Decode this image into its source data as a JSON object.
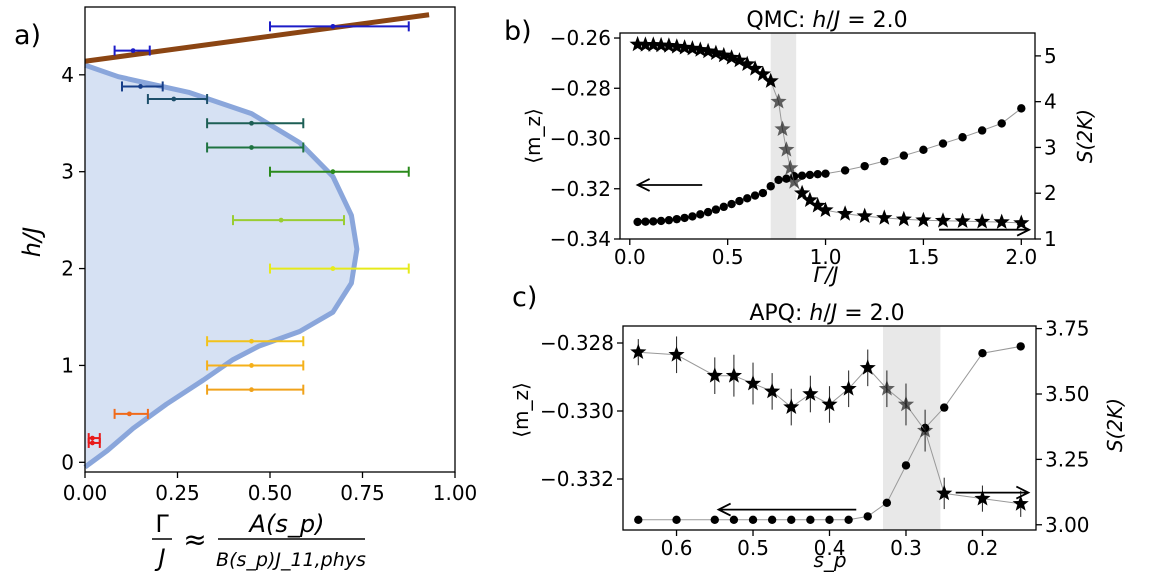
{
  "panel_labels": {
    "a": "a)",
    "b": "b)",
    "c": "c)"
  },
  "colors": {
    "region_fill": "#d6e1f3",
    "region_edge": "#8aa6db",
    "upper_line": "#8b4513",
    "shade": "#e8e8e8",
    "marker": "#000000",
    "guide_line": "#999999"
  },
  "chart_data": [
    {
      "id": "a",
      "type": "line",
      "title": "",
      "xlabel": "Γ/J ≈ A(s_p) / (B(s_p) J_11,phys)",
      "xlabel_parts": {
        "lhs_num": "Γ",
        "lhs_den": "J",
        "approx": "≈",
        "rhs_num": "A(s_p)",
        "rhs_den": "B(s_p)J_11,phys"
      },
      "ylabel": "h/J",
      "xlim": [
        0,
        1.0
      ],
      "ylim": [
        -0.1,
        4.7
      ],
      "xticks": [
        0.0,
        0.25,
        0.5,
        0.75,
        1.0
      ],
      "xtick_labels": [
        "0.00",
        "0.25",
        "0.50",
        "0.75",
        "1.00"
      ],
      "yticks": [
        0,
        1,
        2,
        3,
        4
      ],
      "ytick_labels": [
        "0",
        "1",
        "2",
        "3",
        "4"
      ],
      "phase_boundary": {
        "x": [
          0.0,
          0.09,
          0.28,
          0.45,
          0.58,
          0.67,
          0.72,
          0.735,
          0.72,
          0.67,
          0.58,
          0.47,
          0.4,
          0.32,
          0.22,
          0.13,
          0.06,
          0.01,
          0.0
        ],
        "y": [
          4.1,
          3.98,
          3.82,
          3.6,
          3.3,
          2.95,
          2.55,
          2.2,
          1.85,
          1.55,
          1.35,
          1.2,
          1.06,
          0.85,
          0.6,
          0.35,
          0.12,
          -0.02,
          -0.05
        ]
      },
      "upper_line": {
        "x": [
          0.0,
          0.93
        ],
        "y": [
          4.14,
          4.62
        ]
      },
      "points": [
        {
          "x": 0.13,
          "y": 4.25,
          "xerr": [
            0.08,
            0.175
          ],
          "color": "#1c1cc8"
        },
        {
          "x": 0.67,
          "y": 4.5,
          "xerr": [
            0.5,
            0.875
          ],
          "color": "#1c1cc8"
        },
        {
          "x": 0.15,
          "y": 3.88,
          "xerr": [
            0.1,
            0.21
          ],
          "color": "#173f8a"
        },
        {
          "x": 0.24,
          "y": 3.75,
          "xerr": [
            0.17,
            0.33
          ],
          "color": "#1d4f6a"
        },
        {
          "x": 0.45,
          "y": 3.5,
          "xerr": [
            0.33,
            0.59
          ],
          "color": "#1d5f55"
        },
        {
          "x": 0.45,
          "y": 3.25,
          "xerr": [
            0.33,
            0.59
          ],
          "color": "#1e7340"
        },
        {
          "x": 0.67,
          "y": 3.0,
          "xerr": [
            0.5,
            0.875
          ],
          "color": "#2a8a1c"
        },
        {
          "x": 0.53,
          "y": 2.5,
          "xerr": [
            0.4,
            0.7
          ],
          "color": "#9acd32"
        },
        {
          "x": 0.67,
          "y": 2.0,
          "xerr": [
            0.5,
            0.875
          ],
          "color": "#e6ea1a"
        },
        {
          "x": 0.45,
          "y": 1.25,
          "xerr": [
            0.33,
            0.59
          ],
          "color": "#f2c21a"
        },
        {
          "x": 0.45,
          "y": 1.0,
          "xerr": [
            0.33,
            0.59
          ],
          "color": "#f5b01a"
        },
        {
          "x": 0.45,
          "y": 0.75,
          "xerr": [
            0.33,
            0.59
          ],
          "color": "#f0a21a"
        },
        {
          "x": 0.12,
          "y": 0.5,
          "xerr": [
            0.08,
            0.17
          ],
          "color": "#f06a1a"
        },
        {
          "x": 0.02,
          "y": 0.25,
          "xerr": [
            0.01,
            0.04
          ],
          "color": "#e81a1a"
        },
        {
          "x": 0.02,
          "y": 0.2,
          "xerr": [
            0.01,
            0.04
          ],
          "color": "#e81a1a"
        }
      ]
    },
    {
      "id": "b",
      "type": "line",
      "title": "QMC: h/J = 2.0",
      "title_parts": {
        "prefix": "QMC: ",
        "h": "h",
        "slash": "/",
        "J": "J",
        "eq": " = 2.0"
      },
      "xlabel": "Γ/J",
      "ylabel": "⟨m_z⟩",
      "ylabel_right": "S(2K)",
      "xlim": [
        -0.05,
        2.07
      ],
      "ylim": [
        -0.34,
        -0.258
      ],
      "ylim_right": [
        1.0,
        5.5
      ],
      "xticks": [
        0.0,
        0.5,
        1.0,
        1.5,
        2.0
      ],
      "xtick_labels": [
        "0.0",
        "0.5",
        "1.0",
        "1.5",
        "2.0"
      ],
      "yticks": [
        -0.34,
        -0.32,
        -0.3,
        -0.28,
        -0.26
      ],
      "ytick_labels": [
        "−0.34",
        "−0.32",
        "−0.30",
        "−0.28",
        "−0.26"
      ],
      "yticks_right": [
        1,
        2,
        3,
        4,
        5
      ],
      "ytick_labels_right": [
        "1",
        "2",
        "3",
        "4",
        "5"
      ],
      "shaded_x": [
        0.72,
        0.85
      ],
      "arrow_left": {
        "from": [
          0.37,
          -0.3185
        ],
        "to": [
          0.04,
          -0.3185
        ]
      },
      "arrow_right": {
        "from": [
          1.58,
          -0.3363
        ],
        "to": [
          2.04,
          -0.3363
        ]
      },
      "series": [
        {
          "name": "⟨m_z⟩",
          "axis": "left",
          "marker": "circle",
          "x": [
            0.04,
            0.08,
            0.12,
            0.16,
            0.2,
            0.24,
            0.28,
            0.32,
            0.36,
            0.4,
            0.44,
            0.48,
            0.52,
            0.56,
            0.6,
            0.64,
            0.68,
            0.72,
            0.76,
            0.8,
            0.84,
            0.88,
            0.92,
            0.96,
            1.0,
            1.1,
            1.2,
            1.3,
            1.4,
            1.5,
            1.6,
            1.7,
            1.8,
            1.9,
            2.0
          ],
          "values": [
            -0.3332,
            -0.3331,
            -0.333,
            -0.3328,
            -0.3325,
            -0.3321,
            -0.3316,
            -0.331,
            -0.3302,
            -0.3293,
            -0.3283,
            -0.3272,
            -0.3261,
            -0.3249,
            -0.3238,
            -0.3227,
            -0.3217,
            -0.319,
            -0.3165,
            -0.316,
            -0.315,
            -0.3148,
            -0.3145,
            -0.3142,
            -0.314,
            -0.3127,
            -0.311,
            -0.309,
            -0.3068,
            -0.3045,
            -0.302,
            -0.2995,
            -0.2968,
            -0.294,
            -0.288
          ]
        },
        {
          "name": "S(2K)",
          "axis": "right",
          "marker": "star",
          "x": [
            0.04,
            0.08,
            0.12,
            0.16,
            0.2,
            0.24,
            0.28,
            0.32,
            0.36,
            0.4,
            0.44,
            0.48,
            0.52,
            0.56,
            0.6,
            0.64,
            0.68,
            0.72,
            0.76,
            0.78,
            0.8,
            0.82,
            0.84,
            0.88,
            0.92,
            0.96,
            1.0,
            1.1,
            1.2,
            1.3,
            1.4,
            1.5,
            1.6,
            1.7,
            1.8,
            1.9,
            2.0
          ],
          "values": [
            5.25,
            5.24,
            5.24,
            5.23,
            5.22,
            5.2,
            5.18,
            5.16,
            5.13,
            5.1,
            5.06,
            5.01,
            4.96,
            4.9,
            4.82,
            4.72,
            4.6,
            4.45,
            4.0,
            3.4,
            2.95,
            2.55,
            2.25,
            2.0,
            1.85,
            1.73,
            1.63,
            1.55,
            1.5,
            1.46,
            1.43,
            1.41,
            1.4,
            1.39,
            1.38,
            1.37,
            1.35
          ]
        }
      ]
    },
    {
      "id": "c",
      "type": "line",
      "title": "APQ: h/J = 2.0",
      "title_parts": {
        "prefix": "APQ: ",
        "h": "h",
        "slash": "/",
        "J": "J",
        "eq": " = 2.0"
      },
      "xlabel": "s_p",
      "ylabel": "⟨m_z⟩",
      "ylabel_right": "S(2K)",
      "xlim": [
        0.67,
        0.13
      ],
      "ylim": [
        -0.3335,
        -0.3275
      ],
      "ylim_right": [
        2.98,
        3.76
      ],
      "xticks": [
        0.6,
        0.5,
        0.4,
        0.3,
        0.2
      ],
      "xtick_labels": [
        "0.6",
        "0.5",
        "0.4",
        "0.3",
        "0.2"
      ],
      "yticks": [
        -0.332,
        -0.33,
        -0.328
      ],
      "ytick_labels": [
        "−0.332",
        "−0.330",
        "−0.328"
      ],
      "yticks_right": [
        3.0,
        3.25,
        3.5,
        3.75
      ],
      "ytick_labels_right": [
        "3.00",
        "3.25",
        "3.50",
        "3.75"
      ],
      "shaded_x": [
        0.33,
        0.255
      ],
      "arrow_left": {
        "from": [
          0.365,
          -0.3329
        ],
        "to": [
          0.545,
          -0.3329
        ]
      },
      "arrow_right": {
        "from": [
          0.235,
          -0.3324
        ],
        "to": [
          0.14,
          -0.3324
        ]
      },
      "series": [
        {
          "name": "⟨m_z⟩",
          "axis": "left",
          "marker": "circle",
          "x": [
            0.65,
            0.6,
            0.55,
            0.525,
            0.5,
            0.475,
            0.45,
            0.425,
            0.4,
            0.375,
            0.35,
            0.325,
            0.3,
            0.275,
            0.25,
            0.2,
            0.15
          ],
          "values": [
            -0.3332,
            -0.3332,
            -0.3332,
            -0.3332,
            -0.3332,
            -0.3332,
            -0.3332,
            -0.3332,
            -0.3332,
            -0.3332,
            -0.3331,
            -0.3327,
            -0.3316,
            -0.3305,
            -0.3299,
            -0.3283,
            -0.3281
          ]
        },
        {
          "name": "S(2K)",
          "axis": "right",
          "marker": "star",
          "x": [
            0.65,
            0.6,
            0.55,
            0.525,
            0.5,
            0.475,
            0.45,
            0.425,
            0.4,
            0.375,
            0.35,
            0.325,
            0.3,
            0.275,
            0.25,
            0.2,
            0.15
          ],
          "values": [
            3.66,
            3.65,
            3.57,
            3.57,
            3.54,
            3.51,
            3.45,
            3.5,
            3.46,
            3.52,
            3.6,
            3.52,
            3.46,
            3.36,
            3.12,
            3.1,
            3.08
          ],
          "errors": [
            0.05,
            0.07,
            0.07,
            0.08,
            0.08,
            0.07,
            0.07,
            0.07,
            0.07,
            0.07,
            0.07,
            0.07,
            0.08,
            0.08,
            0.06,
            0.05,
            0.05
          ]
        }
      ]
    }
  ]
}
